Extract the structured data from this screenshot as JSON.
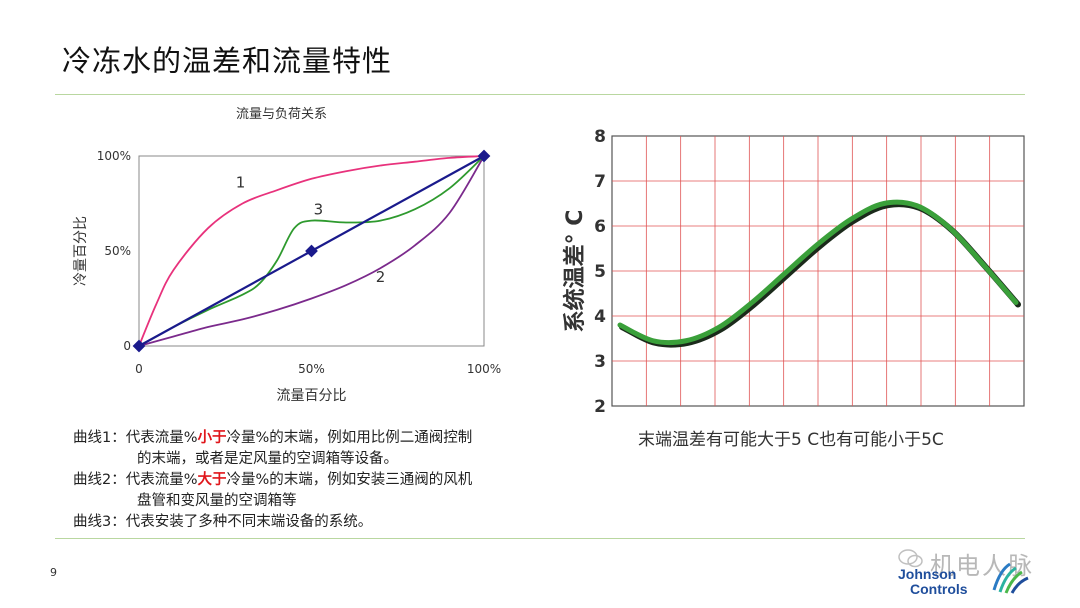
{
  "page": {
    "title": "冷冻水的温差和流量特性",
    "page_number": "9"
  },
  "notes": {
    "c1_a": "曲线1：代表流量%",
    "c1_hl": "小于",
    "c1_b": "冷量%的末端，例如用比例二通阀控制",
    "c1_c": "的末端，或者是定风量的空调箱等设备。",
    "c2_a": "曲线2：代表流量%",
    "c2_hl": "大于",
    "c2_b": "冷量%的末端，例如安装三通阀的风机",
    "c2_c": "盘管和变风量的空调箱等",
    "c3": "曲线3：代表安装了多种不同末端设备的系统。"
  },
  "right_caption": "末端温差有可能大于5 C也有可能小于5C",
  "watermark": "机电人脉",
  "logo": {
    "line1": "Johnson",
    "line2": "Controls",
    "color": "#1f4e9c"
  },
  "chart_data": [
    {
      "type": "line",
      "title": "流量与负荷关系",
      "xlabel": "流量百分比",
      "ylabel": "冷量百分比",
      "xlim": [
        0,
        100
      ],
      "ylim": [
        0,
        100
      ],
      "x_ticks": [
        "0",
        "50%",
        "100%"
      ],
      "y_ticks": [
        "0",
        "50%",
        "100%"
      ],
      "series": [
        {
          "name": "1",
          "color": "#e8327c",
          "x": [
            0,
            5,
            10,
            20,
            30,
            40,
            50,
            60,
            70,
            80,
            90,
            100
          ],
          "y": [
            0,
            22,
            40,
            62,
            75,
            82,
            88,
            92,
            95,
            97,
            99,
            100
          ]
        },
        {
          "name": "2",
          "color": "#7b2a8c",
          "x": [
            0,
            10,
            20,
            30,
            40,
            50,
            60,
            70,
            80,
            90,
            100
          ],
          "y": [
            0,
            5,
            10,
            14,
            19,
            25,
            32,
            41,
            53,
            70,
            100
          ]
        },
        {
          "name": "3",
          "color": "#2e9a2e",
          "x": [
            0,
            10,
            20,
            30,
            35,
            40,
            45,
            50,
            60,
            70,
            80,
            90,
            100
          ],
          "y": [
            0,
            10,
            19,
            27,
            33,
            45,
            62,
            66,
            65,
            66,
            72,
            83,
            100
          ]
        },
        {
          "name": "",
          "color": "#1a1a8c",
          "markers": true,
          "x": [
            0,
            50,
            100
          ],
          "y": [
            0,
            50,
            100
          ]
        }
      ]
    },
    {
      "type": "line",
      "title": "",
      "xlabel": "",
      "ylabel": "系统温差° C",
      "ylim": [
        2,
        8
      ],
      "y_ticks": [
        "2",
        "3",
        "4",
        "5",
        "6",
        "7",
        "8"
      ],
      "x_gridlines": 12,
      "series": [
        {
          "name": "",
          "color": "#3aa03a",
          "x": [
            0,
            1,
            2,
            3,
            4,
            5,
            6,
            7,
            8,
            9,
            10,
            11,
            12
          ],
          "y": [
            3.8,
            3.45,
            3.45,
            3.75,
            4.3,
            4.95,
            5.6,
            6.15,
            6.5,
            6.45,
            5.95,
            5.15,
            4.3
          ]
        }
      ]
    }
  ]
}
